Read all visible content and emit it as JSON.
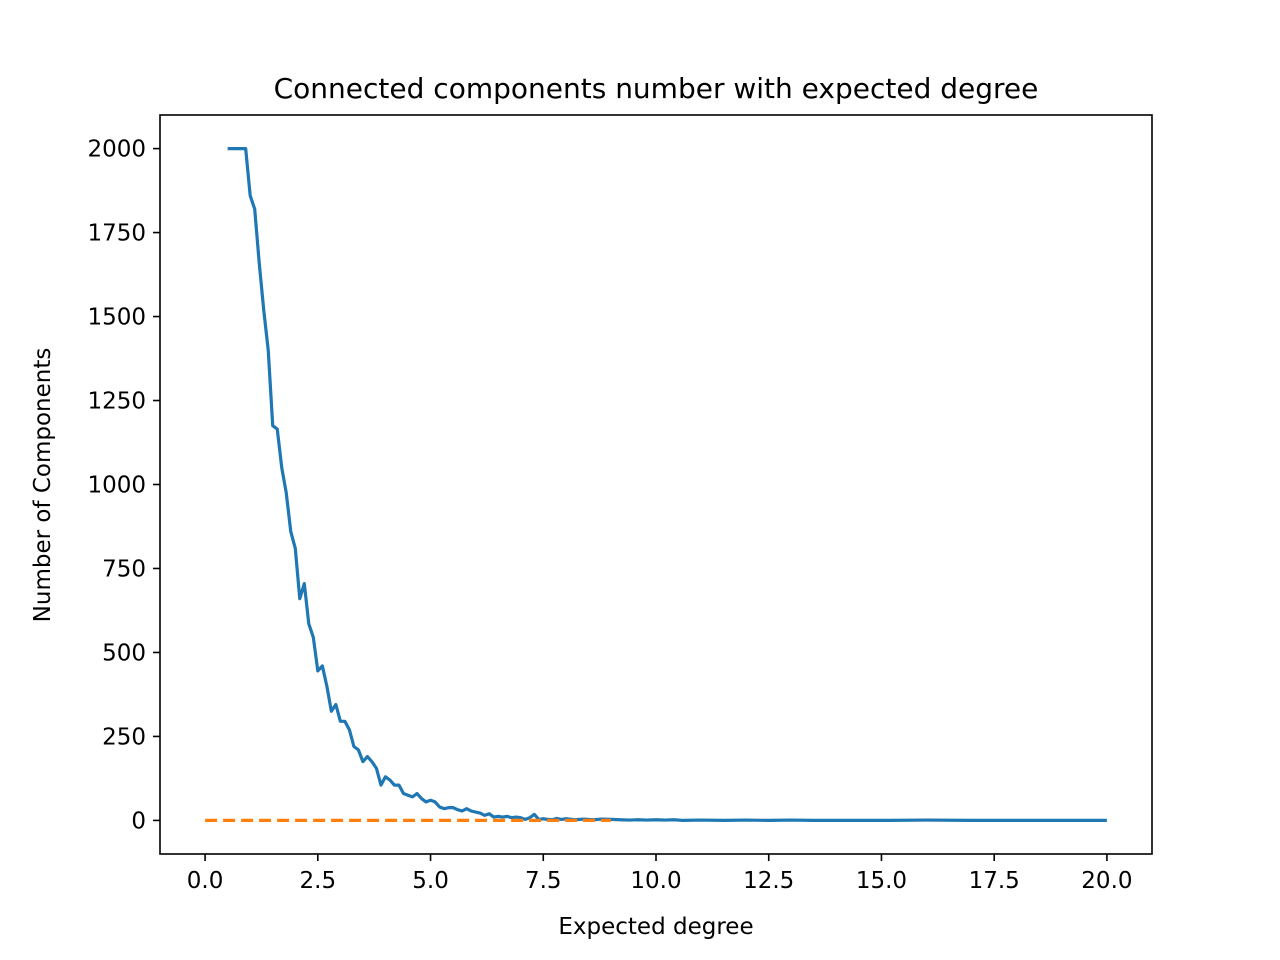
{
  "chart_data": {
    "type": "line",
    "title": "Connected components number with expected degree",
    "xlabel": "Expected degree",
    "ylabel": "Number of Components",
    "xlim": [
      -1.0,
      21.0
    ],
    "ylim": [
      -100,
      2100
    ],
    "grid": false,
    "x_ticks": [
      0.0,
      2.5,
      5.0,
      7.5,
      10.0,
      12.5,
      15.0,
      17.5,
      20.0
    ],
    "x_tick_labels": [
      "0.0",
      "2.5",
      "5.0",
      "7.5",
      "10.0",
      "12.5",
      "15.0",
      "17.5",
      "20.0"
    ],
    "y_ticks": [
      0,
      250,
      500,
      750,
      1000,
      1250,
      1500,
      1750,
      2000
    ],
    "y_tick_labels": [
      "0",
      "250",
      "500",
      "750",
      "1000",
      "1250",
      "1500",
      "1750",
      "2000"
    ],
    "series": [
      {
        "color": "#1f77b4",
        "style": "solid",
        "x": [
          0.5,
          0.6,
          0.7,
          0.8,
          0.9,
          1.0,
          1.1,
          1.2,
          1.3,
          1.4,
          1.5,
          1.6,
          1.7,
          1.8,
          1.9,
          2.0,
          2.1,
          2.2,
          2.3,
          2.4,
          2.5,
          2.6,
          2.7,
          2.8,
          2.9,
          3.0,
          3.1,
          3.2,
          3.3,
          3.4,
          3.5,
          3.6,
          3.7,
          3.8,
          3.9,
          4.0,
          4.1,
          4.2,
          4.3,
          4.4,
          4.5,
          4.6,
          4.7,
          4.8,
          4.9,
          5.0,
          5.1,
          5.2,
          5.3,
          5.4,
          5.5,
          5.6,
          5.7,
          5.8,
          5.9,
          6.0,
          6.1,
          6.2,
          6.3,
          6.4,
          6.5,
          6.6,
          6.7,
          6.8,
          6.9,
          7.0,
          7.1,
          7.2,
          7.3,
          7.4,
          7.5,
          7.6,
          7.7,
          7.8,
          7.9,
          8.0,
          8.2,
          8.4,
          8.6,
          8.8,
          9.0,
          9.2,
          9.4,
          9.6,
          9.8,
          10.0,
          10.2,
          10.4,
          10.6,
          11.0,
          11.5,
          12.0,
          12.5,
          13.0,
          13.5,
          14.0,
          15.0,
          16.0,
          17.0,
          18.0,
          19.0,
          20.0
        ],
        "y": [
          2000,
          2000,
          2000,
          2000,
          2000,
          1860,
          1820,
          1660,
          1520,
          1400,
          1175,
          1165,
          1050,
          975,
          860,
          810,
          660,
          705,
          585,
          545,
          445,
          460,
          400,
          325,
          345,
          295,
          295,
          270,
          220,
          210,
          175,
          190,
          175,
          155,
          105,
          130,
          120,
          105,
          105,
          80,
          75,
          70,
          80,
          65,
          55,
          60,
          55,
          40,
          35,
          38,
          38,
          32,
          28,
          35,
          28,
          25,
          22,
          15,
          20,
          10,
          12,
          10,
          12,
          8,
          10,
          8,
          3,
          8,
          18,
          3,
          5,
          3,
          2,
          6,
          3,
          5,
          2,
          4,
          2,
          4,
          3,
          2,
          1,
          2,
          1,
          2,
          1,
          2,
          0,
          1,
          0,
          1,
          0,
          1,
          0,
          0,
          0,
          1,
          0,
          0,
          0,
          0
        ]
      },
      {
        "color": "#ff7f0e",
        "style": "dashed",
        "x": [
          0.0,
          9.0
        ],
        "y": [
          0,
          0
        ]
      }
    ]
  }
}
